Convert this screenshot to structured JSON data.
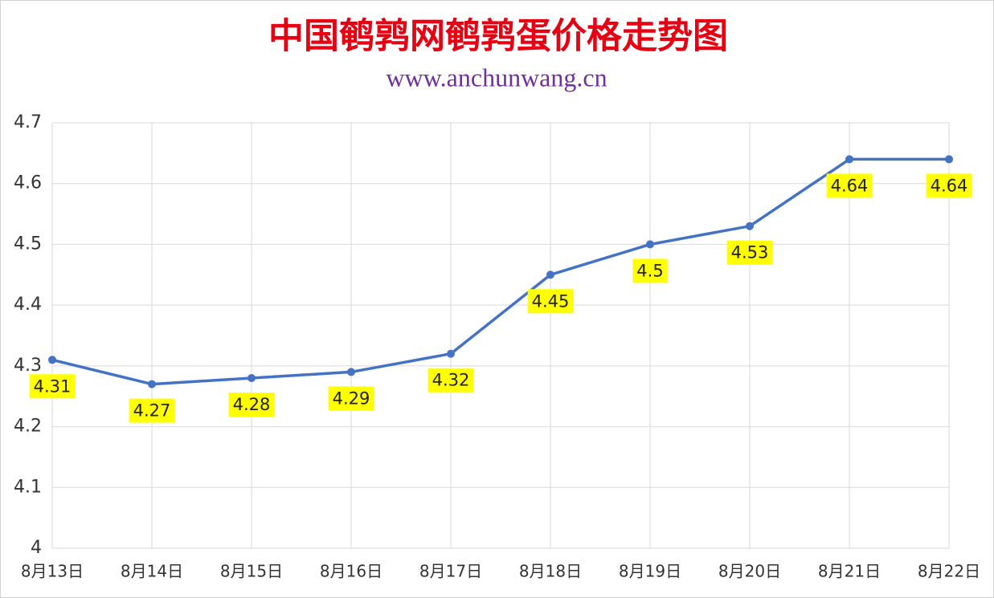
{
  "chart_data": {
    "type": "line",
    "title": "中国鹌鹑网鹌鹑蛋价格走势图",
    "subtitle": "www.anchunwang.cn",
    "categories": [
      "8月13日",
      "8月14日",
      "8月15日",
      "8月16日",
      "8月17日",
      "8月18日",
      "8月19日",
      "8月20日",
      "8月21日",
      "8月22日"
    ],
    "values": [
      4.31,
      4.27,
      4.28,
      4.29,
      4.32,
      4.45,
      4.5,
      4.53,
      4.64,
      4.64
    ],
    "color": "#4472c4",
    "label_background": "#ffff00",
    "ylim": [
      4,
      4.7
    ],
    "yticks": [
      4,
      4.1,
      4.2,
      4.3,
      4.4,
      4.5,
      4.6,
      4.7
    ],
    "grid": true
  }
}
